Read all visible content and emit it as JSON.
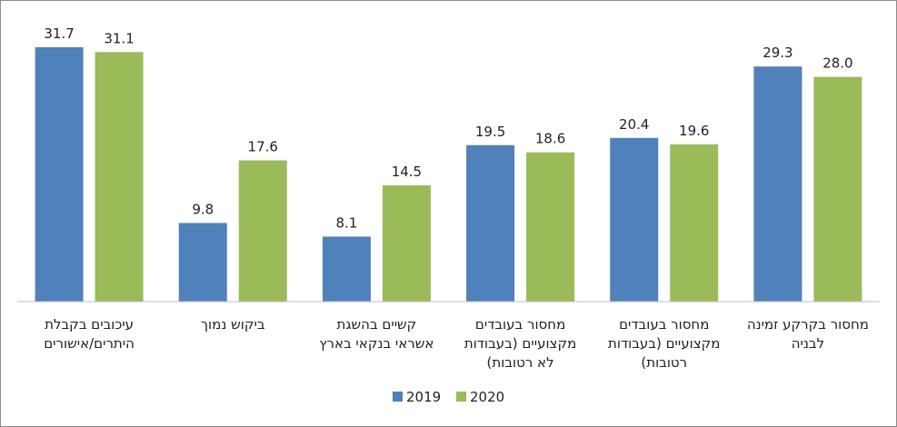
{
  "chart_data": {
    "type": "bar",
    "title": "",
    "xlabel": "",
    "ylabel": "",
    "ylim": [
      0,
      31.7
    ],
    "grid": false,
    "legend": "bottom-center",
    "categories": [
      [
        "עיכובים בקבלת",
        "היתרים/אישורים"
      ],
      [
        "ביקוש נמוך"
      ],
      [
        "קשיים בהשגת",
        "אשראי בנקאי בארץ"
      ],
      [
        "מחסור בעובדים",
        "מקצועיים (בעבודות",
        "לא רטובות)"
      ],
      [
        "מחסור בעובדים",
        "מקצועיים (בעבודות",
        "רטובות)"
      ],
      [
        "מחסור בקרקע זמינה",
        "לבניה"
      ]
    ],
    "series": [
      {
        "name": "2019",
        "color": "#4f81bd",
        "values": [
          31.7,
          9.8,
          8.1,
          19.5,
          20.4,
          29.3
        ]
      },
      {
        "name": "2020",
        "color": "#9bbb59",
        "values": [
          31.1,
          17.6,
          14.5,
          18.6,
          19.6,
          28.0
        ]
      }
    ]
  }
}
